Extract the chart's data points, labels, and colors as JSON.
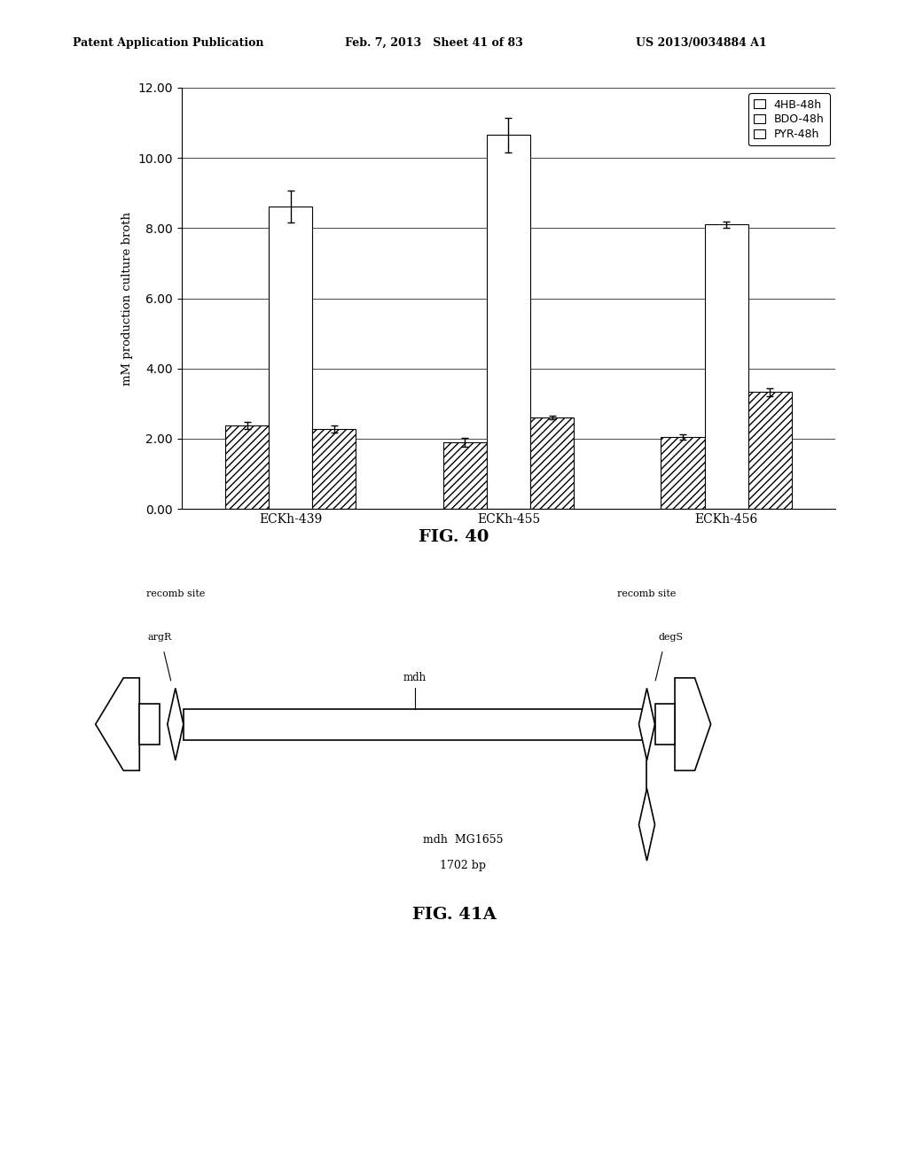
{
  "header_left": "Patent Application Publication",
  "header_mid": "Feb. 7, 2013   Sheet 41 of 83",
  "header_right": "US 2013/0034884 A1",
  "bar_groups": [
    "ECKh-439",
    "ECKh-455",
    "ECKh-456"
  ],
  "bar_labels": [
    "4HB-48h",
    "BDO-48h",
    "PYR-48h"
  ],
  "bar_values": [
    [
      2.38,
      8.62,
      2.28
    ],
    [
      1.9,
      10.65,
      2.6
    ],
    [
      2.05,
      8.1,
      3.33
    ]
  ],
  "bar_errors": [
    [
      0.1,
      0.45,
      0.1
    ],
    [
      0.12,
      0.5,
      0.05
    ],
    [
      0.08,
      0.08,
      0.12
    ]
  ],
  "hatch_patterns": [
    "////",
    "",
    "////"
  ],
  "bar_legend_hatch": [
    "////",
    "",
    "////"
  ],
  "ylabel": "mM production culture broth",
  "ylim": [
    0,
    12
  ],
  "yticks": [
    0.0,
    2.0,
    4.0,
    6.0,
    8.0,
    10.0,
    12.0
  ],
  "fig40_label": "FIG. 40",
  "fig41a_label": "FIG. 41A",
  "diagram_labels": {
    "recomb_site_left": "recomb site",
    "argR": "argR",
    "mdh": "mdh",
    "recomb_site_right": "recomb site",
    "degS": "degS",
    "mdh_mg": "mdh  MG1655",
    "bp": "1702 bp"
  },
  "background_color": "#ffffff"
}
